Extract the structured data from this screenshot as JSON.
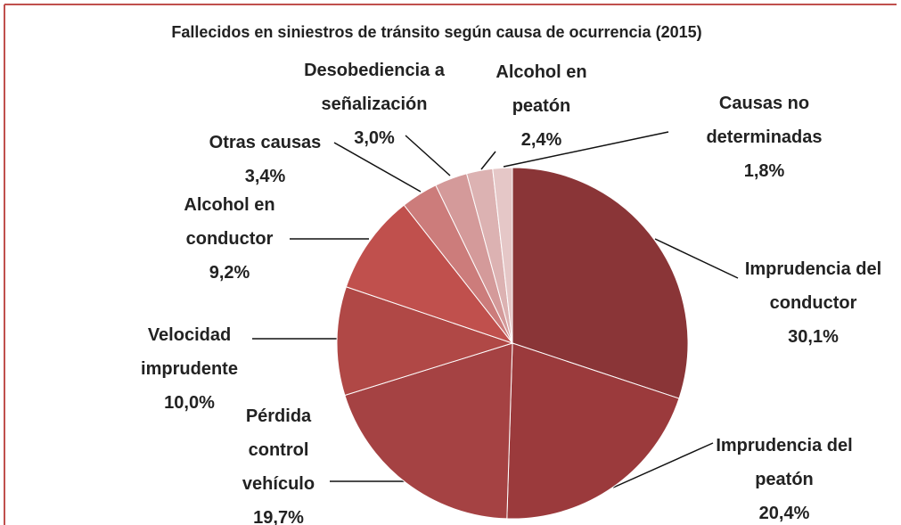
{
  "chart_data": {
    "type": "pie",
    "title": "Fallecidos en siniestros de tránsito según causa de ocurrencia  (2015)",
    "categories": [
      "Imprudencia del conductor",
      "Imprudencia del peatón",
      "Pérdida control vehículo",
      "Velocidad imprudente",
      "Alcohol en conductor",
      "Otras causas",
      "Desobediencia a señalización",
      "Alcohol en peatón",
      "Causas no determinadas"
    ],
    "values": [
      30.1,
      20.4,
      19.7,
      10.0,
      9.2,
      3.4,
      3.0,
      2.4,
      1.8
    ],
    "value_labels": [
      "30,1%",
      "20,4%",
      "19,7%",
      "10,0%",
      "9,2%",
      "3,4%",
      "3,0%",
      "2,4%",
      "1,8%"
    ],
    "colors": [
      "#8a3537",
      "#9b3a3c",
      "#a54243",
      "#b04846",
      "#c0504d",
      "#cc7c7b",
      "#d49a9a",
      "#dcb2b2",
      "#e5c7c7"
    ]
  }
}
